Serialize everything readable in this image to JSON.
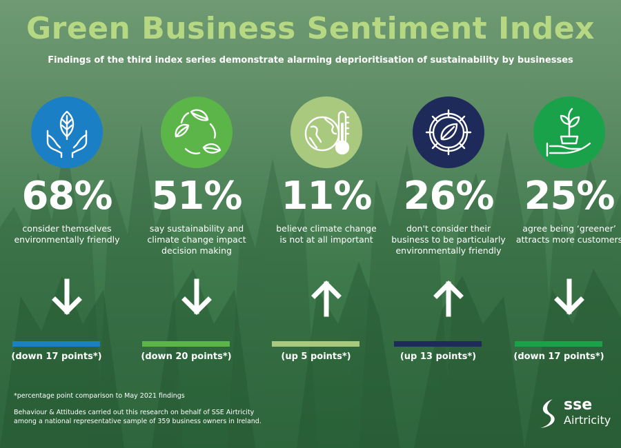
{
  "header": {
    "title": "Green Business Sentiment Index",
    "subtitle": "Findings of the third index series demonstrate alarming deprioritisation of sustainability by businesses"
  },
  "stats": [
    {
      "icon": "hands-leaf-icon",
      "icon_color": "#1b7fc6",
      "percent": "68%",
      "line1": "consider themselves",
      "line2": "environmentally friendly",
      "line3": "",
      "direction": "down",
      "change": "(down 17 points*)",
      "bar_color": "#1b7fc6"
    },
    {
      "icon": "recycle-leaves-icon",
      "icon_color": "#5bb548",
      "percent": "51%",
      "line1": "say sustainability and",
      "line2": "climate change impact",
      "line3": "decision making",
      "direction": "down",
      "change": "(down 20 points*)",
      "bar_color": "#5bb548"
    },
    {
      "icon": "globe-thermometer-icon",
      "icon_color": "#a9c97f",
      "percent": "11%",
      "line1": "believe climate change",
      "line2": "is not at all important",
      "line3": "",
      "direction": "up",
      "change": "(up 5 points*)",
      "bar_color": "#a9c97f"
    },
    {
      "icon": "gear-leaf-icon",
      "icon_color": "#1d2a5a",
      "percent": "26%",
      "line1": "don't consider their",
      "line2": "business to be particularly",
      "line3": "environmentally friendly",
      "direction": "up",
      "change": "(up 13 points*)",
      "bar_color": "#1d2a5a"
    },
    {
      "icon": "hand-plant-icon",
      "icon_color": "#1aa24a",
      "percent": "25%",
      "line1": "agree being ‘greener’",
      "line2": "attracts more customers",
      "line3": "",
      "direction": "down",
      "change": "(down 17 points*)",
      "bar_color": "#1aa24a"
    }
  ],
  "footer": {
    "footnote": "*percentage point comparison to May 2021 findings",
    "method_line1": "Behaviour & Attitudes carried out this research on behalf of SSE Airtricity",
    "method_line2": "among a national representative sample of 359 business owners in Ireland."
  },
  "logo": {
    "sse": "sse",
    "name": "Airtricity"
  }
}
